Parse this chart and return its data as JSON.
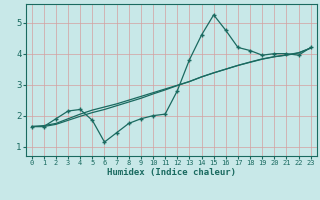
{
  "xlabel": "Humidex (Indice chaleur)",
  "ylabel": "",
  "bg_color": "#c8e8e8",
  "grid_color": "#d4a0a0",
  "line_color": "#1a6a60",
  "axis_color": "#1a6a60",
  "xlim": [
    -0.5,
    23.5
  ],
  "ylim": [
    0.7,
    5.6
  ],
  "xticks": [
    0,
    1,
    2,
    3,
    4,
    5,
    6,
    7,
    8,
    9,
    10,
    11,
    12,
    13,
    14,
    15,
    16,
    17,
    18,
    19,
    20,
    21,
    22,
    23
  ],
  "yticks": [
    1,
    2,
    3,
    4,
    5
  ],
  "line1_x": [
    0,
    1,
    2,
    3,
    4,
    5,
    6,
    7,
    8,
    9,
    10,
    11,
    12,
    13,
    14,
    15,
    16,
    17,
    18,
    19,
    20,
    21,
    22,
    23
  ],
  "line1_y": [
    1.65,
    1.65,
    1.9,
    2.15,
    2.2,
    1.85,
    1.15,
    1.45,
    1.75,
    1.9,
    2.0,
    2.05,
    2.8,
    3.8,
    4.6,
    5.25,
    4.75,
    4.2,
    4.1,
    3.95,
    4.0,
    4.0,
    3.95,
    4.2
  ],
  "line2_x": [
    0,
    1,
    2,
    3,
    4,
    5,
    6,
    7,
    8,
    9,
    10,
    11,
    12,
    13,
    14,
    15,
    16,
    17,
    18,
    19,
    20,
    21,
    22,
    23
  ],
  "line2_y": [
    1.65,
    1.68,
    1.75,
    1.9,
    2.05,
    2.18,
    2.28,
    2.38,
    2.5,
    2.62,
    2.74,
    2.86,
    2.98,
    3.1,
    3.25,
    3.38,
    3.5,
    3.62,
    3.72,
    3.82,
    3.9,
    3.95,
    4.02,
    4.18
  ],
  "line3_x": [
    0,
    1,
    2,
    3,
    4,
    5,
    6,
    7,
    8,
    9,
    10,
    11,
    12,
    13,
    14,
    15,
    16,
    17,
    18,
    19,
    20,
    21,
    22,
    23
  ],
  "line3_y": [
    1.65,
    1.65,
    1.72,
    1.85,
    1.98,
    2.1,
    2.2,
    2.32,
    2.44,
    2.56,
    2.7,
    2.83,
    2.97,
    3.1,
    3.25,
    3.38,
    3.5,
    3.62,
    3.73,
    3.83,
    3.9,
    3.96,
    4.03,
    4.18
  ]
}
